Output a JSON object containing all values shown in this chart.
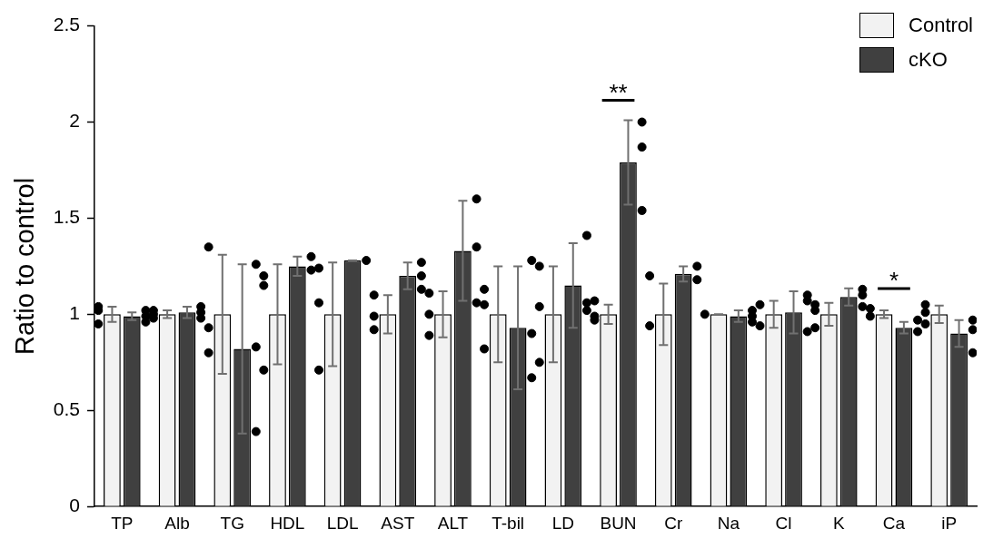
{
  "chart_data": {
    "type": "bar",
    "ylabel": "Ratio to control",
    "categories": [
      "TP",
      "Alb",
      "TG",
      "HDL",
      "LDL",
      "AST",
      "ALT",
      "T-bil",
      "LD",
      "BUN",
      "Cr",
      "Na",
      "Cl",
      "K",
      "Ca",
      "iP"
    ],
    "ylim": [
      0,
      2.5
    ],
    "yticks": [
      0,
      0.5,
      1,
      1.5,
      2,
      2.5
    ],
    "grid": false,
    "legend": "top right",
    "series": [
      {
        "name": "Control",
        "color": "#f2f2f2",
        "values": [
          1,
          1,
          1,
          1,
          1,
          1,
          1,
          1,
          1,
          1,
          1,
          1,
          1,
          1,
          1,
          1
        ],
        "errors": [
          0.04,
          0.02,
          0.31,
          0.26,
          0.27,
          0.1,
          0.12,
          0.25,
          0.25,
          0.05,
          0.16,
          0,
          0.07,
          0.06,
          0.02,
          0.045
        ]
      },
      {
        "name": "cKO",
        "color": "#404040",
        "values": [
          0.99,
          1.01,
          0.82,
          1.25,
          1.28,
          1.2,
          1.33,
          0.93,
          1.15,
          1.79,
          1.21,
          0.99,
          1.01,
          1.09,
          0.93,
          0.9
        ],
        "errors": [
          0.02,
          0.03,
          0.44,
          0.05,
          0,
          0.07,
          0.26,
          0.32,
          0.22,
          0.22,
          0.04,
          0.03,
          0.11,
          0.045,
          0.03,
          0.07
        ]
      },
      {
        "type": "scatter",
        "color": "#000000",
        "marker": "circle",
        "x": [
          "TP",
          "TP",
          "TP",
          "Alb",
          "Alb",
          "Alb",
          "TG",
          "TG",
          "TG",
          "HDL",
          "HDL",
          "HDL",
          "LDL",
          "LDL",
          "LDL",
          "AST",
          "AST",
          "AST",
          "ALT",
          "ALT",
          "ALT",
          "T-bil",
          "T-bil",
          "T-bil",
          "LD",
          "LD",
          "LD",
          "BUN",
          "BUN",
          "BUN",
          "Cr",
          "Cr",
          "Na",
          "Cl",
          "Cl",
          "K",
          "K",
          "K",
          "Ca",
          "Ca",
          "iP",
          "iP",
          "iP"
        ],
        "values": [
          1.04,
          1.02,
          0.95,
          1.02,
          1.0,
          0.98,
          1.35,
          0.93,
          0.8,
          1.2,
          1.15,
          0.71,
          1.24,
          1.06,
          0.71,
          1.1,
          0.99,
          0.92,
          1.11,
          1.0,
          0.89,
          1.13,
          1.05,
          0.82,
          1.25,
          1.04,
          0.75,
          1.07,
          0.99,
          0.97,
          1.2,
          0.94,
          1.0,
          1.05,
          0.94,
          1.05,
          1.02,
          0.93,
          1.03,
          0.99,
          1.05,
          1.01,
          0.95
        ]
      },
      {
        "type": "scatter",
        "color": "#000000",
        "marker": "circle",
        "x": [
          "TP",
          "TP",
          "TP",
          "Alb",
          "Alb",
          "Alb",
          "TG",
          "TG",
          "TG",
          "HDL",
          "HDL",
          "LDL",
          "AST",
          "AST",
          "AST",
          "ALT",
          "ALT",
          "ALT",
          "T-bil",
          "T-bil",
          "T-bil",
          "LD",
          "LD",
          "LD",
          "BUN",
          "BUN",
          "BUN",
          "Cr",
          "Cr",
          "Na",
          "Na",
          "Na",
          "Cl",
          "Cl",
          "Cl",
          "K",
          "K",
          "K",
          "Ca",
          "Ca",
          "iP",
          "iP",
          "iP"
        ],
        "values": [
          1.02,
          0.99,
          0.96,
          1.04,
          1.01,
          0.98,
          1.26,
          0.83,
          0.39,
          1.3,
          1.23,
          1.28,
          1.27,
          1.2,
          1.13,
          1.6,
          1.35,
          1.06,
          1.28,
          0.9,
          0.67,
          1.41,
          1.06,
          1.02,
          2.0,
          1.87,
          1.54,
          1.25,
          1.18,
          1.02,
          0.99,
          0.96,
          1.1,
          1.07,
          0.91,
          1.13,
          1.1,
          1.04,
          0.97,
          0.91,
          0.97,
          0.92,
          0.8
        ]
      }
    ],
    "annotations": [
      "**",
      "*"
    ]
  }
}
